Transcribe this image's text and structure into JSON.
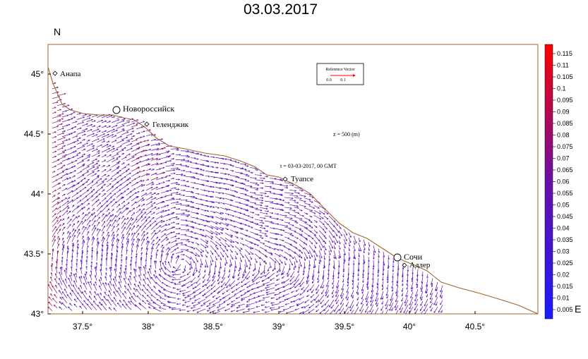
{
  "title": "03.03.2017",
  "axes": {
    "north_label": "N",
    "east_label": "E",
    "x_ticks": [
      "37.5°",
      "38°",
      "38.5°",
      "39°",
      "39.5°",
      "40°",
      "40.5°"
    ],
    "y_ticks": [
      "45°",
      "44.5°",
      "44°",
      "43.5°",
      "43°"
    ],
    "x_range": [
      37.2,
      41.0
    ],
    "y_range": [
      43.0,
      45.25
    ]
  },
  "annotations": {
    "depth": "z = 500 (m)",
    "time": "t = 03-03-2017, 00 GMT"
  },
  "reference_vector": {
    "label": "Reference Vector",
    "scale_min": "0.0",
    "scale_max": "0.1"
  },
  "cities": [
    {
      "id": "anapa",
      "name": "Анапа",
      "lon": 37.32,
      "lat": 45.0,
      "major": false
    },
    {
      "id": "novorossiysk",
      "name": "Новороссийск",
      "lon": 37.77,
      "lat": 44.71,
      "major": true
    },
    {
      "id": "gelendzhik",
      "name": "Геленджик",
      "lon": 38.0,
      "lat": 44.58,
      "major": false
    },
    {
      "id": "tuapse",
      "name": "Туапсе",
      "lon": 39.05,
      "lat": 44.13,
      "major": false
    },
    {
      "id": "sochi",
      "name": "Сочи",
      "lon": 39.9,
      "lat": 43.47,
      "major": true
    },
    {
      "id": "adler",
      "name": "Адлер",
      "lon": 39.92,
      "lat": 43.42,
      "major": false
    }
  ],
  "colorbar": {
    "labels": [
      "0.115",
      "0.11",
      "0.105",
      "0.1",
      "0.095",
      "0.09",
      "0.085",
      "0.08",
      "0.075",
      "0.07",
      "0.065",
      "0.06",
      "0.055",
      "0.05",
      "0.045",
      "0.04",
      "0.035",
      "0.03",
      "0.025",
      "0.02",
      "0.015",
      "0.01",
      "0.005"
    ],
    "colors": {
      "low": "#1a1aff",
      "mid": "#6a0fa8",
      "high": "#ff0000"
    }
  },
  "colors": {
    "coast": "#a0652a",
    "vector_main": "#5a0fb4",
    "vector_strong": "#8a1060"
  }
}
